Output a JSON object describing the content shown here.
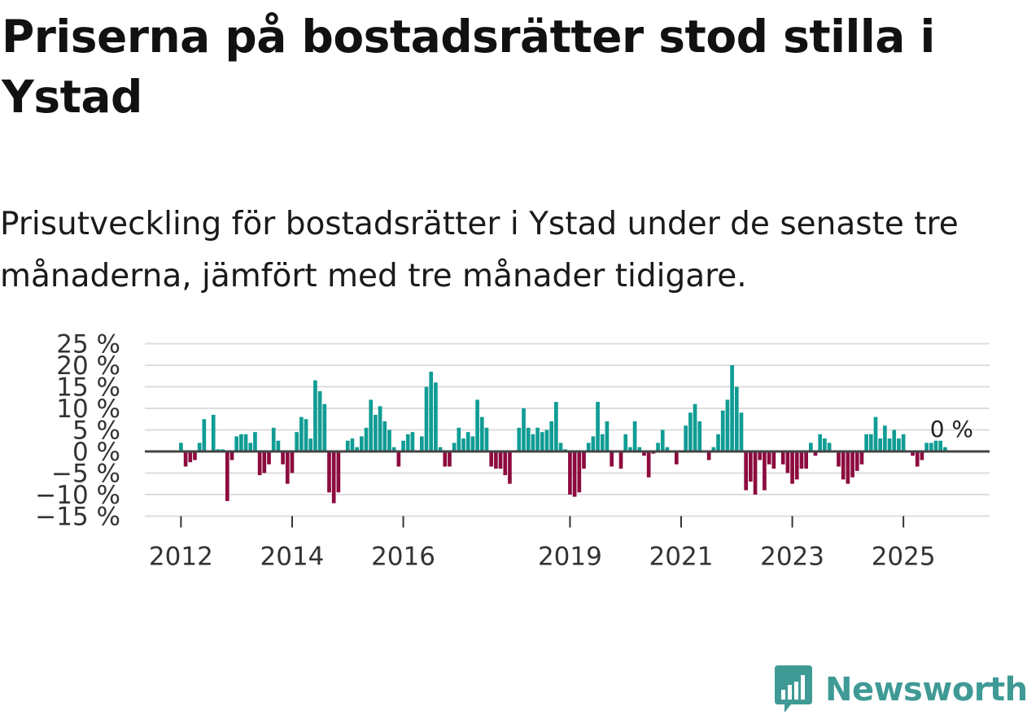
{
  "title": "Priserna på bostadsrätter stod stilla i Ystad",
  "subtitle": "Prisutveckling för bostadsrätter i Ystad under de senaste tre månaderna, jämfört med tre månader tidigare.",
  "brand": {
    "name": "Newsworthy",
    "color": "#3f9a96",
    "icon": "bar-chart-speech-bubble-icon"
  },
  "colors": {
    "positive": "#109c94",
    "negative": "#8c0b3e",
    "grid": "#dddddd",
    "zero": "#444444"
  },
  "chart_data": {
    "type": "bar",
    "ylabel": "",
    "xlabel": "",
    "ylim": [
      -15,
      25
    ],
    "yticks": [
      25,
      20,
      15,
      10,
      5,
      0,
      -5,
      -10,
      -15
    ],
    "ytick_labels": [
      "25 %",
      "20 %",
      "15 %",
      "10 %",
      "5 %",
      "0 %",
      "−5 %",
      "−10 %",
      "−15 %"
    ],
    "xlim": [
      2011.35,
      2026.55
    ],
    "xticks": [
      2012,
      2014,
      2016,
      2019,
      2021,
      2023,
      2025
    ],
    "xtick_labels": [
      "2012",
      "2014",
      "2016",
      "2019",
      "2021",
      "2023",
      "2025"
    ],
    "start": {
      "year": 2012,
      "month": 1
    },
    "values": [
      2,
      -3.5,
      -2.5,
      -2,
      2,
      7.5,
      0,
      8.5,
      0.5,
      0.5,
      -11.5,
      -2,
      3.5,
      4,
      4,
      2,
      4.5,
      -5.5,
      -5,
      -3,
      5.5,
      2.5,
      -3,
      -7.5,
      -5,
      4.5,
      8,
      7.5,
      3,
      16.5,
      14,
      11,
      -9.5,
      -12,
      -9.5,
      0,
      2.5,
      3,
      1,
      3.5,
      5.5,
      12,
      8.5,
      10.5,
      7,
      5,
      1,
      -3.5,
      2.5,
      4,
      4.5,
      0,
      3.5,
      15,
      18.5,
      16,
      1,
      -3.5,
      -3.5,
      2,
      5.5,
      3,
      4.5,
      3.5,
      12,
      8,
      5.5,
      -3.5,
      -4,
      -4,
      -5.5,
      -7.5,
      0,
      5.5,
      10,
      5.5,
      4,
      5.5,
      4.5,
      5,
      7,
      11.5,
      2,
      0.5,
      -10,
      -10.5,
      -9.5,
      -4,
      2,
      3.5,
      11.5,
      4,
      7,
      -3.5,
      0,
      -4,
      4,
      1,
      7,
      1,
      -1,
      -6,
      -0.5,
      2,
      5,
      1,
      0,
      -3,
      0,
      6,
      9,
      11,
      7,
      0,
      -2,
      1,
      4,
      9.5,
      12,
      20,
      15,
      9,
      -9,
      -7,
      -10,
      -2,
      -9,
      -3,
      -4,
      0,
      -3,
      -5,
      -7.5,
      -6.5,
      -4,
      -4,
      2,
      -1,
      4,
      3,
      2,
      0,
      -3.5,
      -6.5,
      -7.5,
      -6,
      -4.5,
      -3,
      4,
      4,
      8,
      3,
      6,
      3,
      5,
      3,
      4,
      0,
      -1,
      -3.5,
      -2,
      2,
      2,
      2.5,
      2.5,
      1
    ],
    "annotation": {
      "label": "0 %",
      "value": 0
    }
  }
}
